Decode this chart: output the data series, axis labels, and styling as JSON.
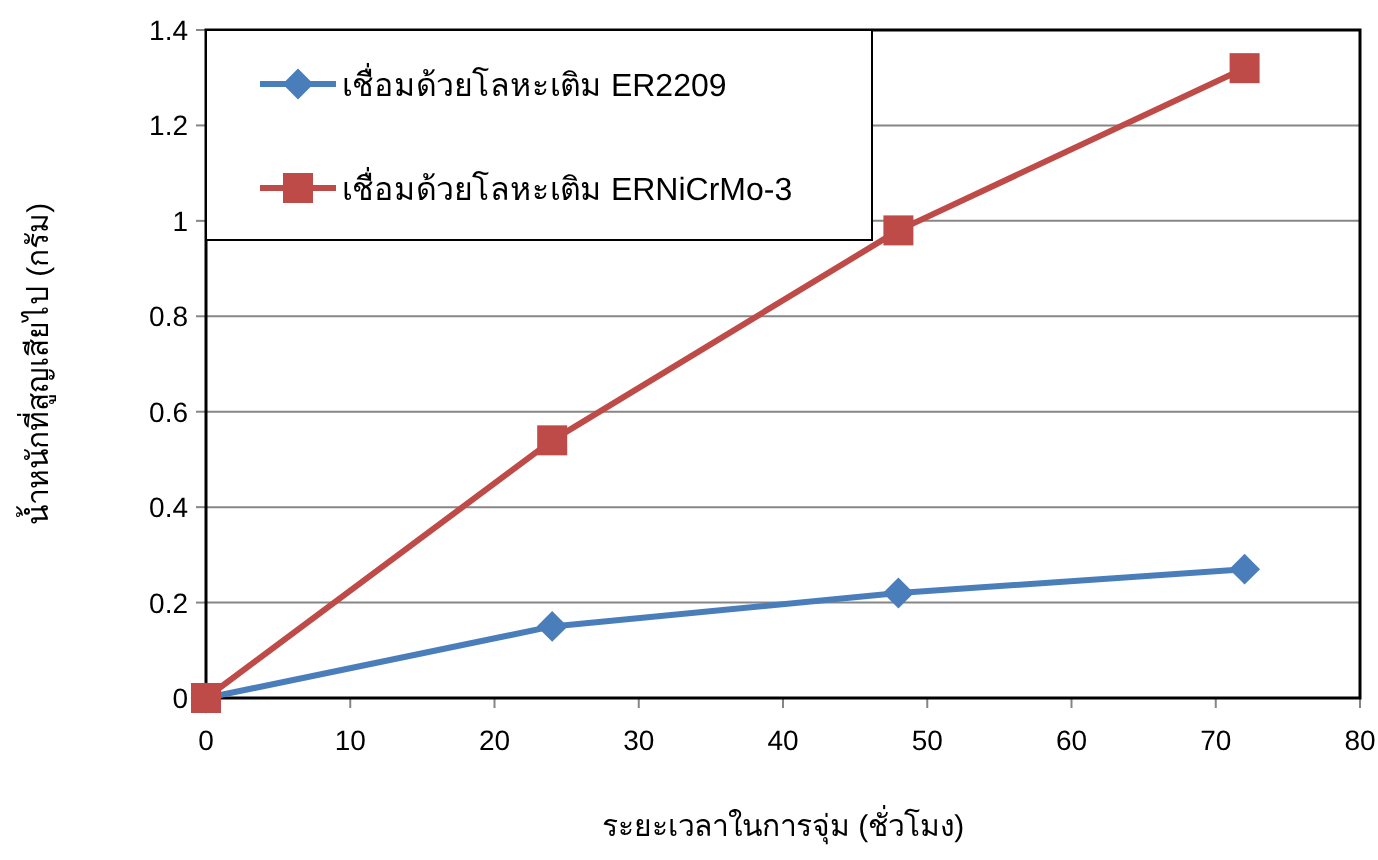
{
  "chart_data": {
    "type": "line",
    "xlabel": "ระยะเวลาในการจุ่ม (ชั่วโมง)",
    "ylabel": "น้ำหนักที่สูญเสียไป (กรัม)",
    "x": [
      0,
      24,
      48,
      72
    ],
    "series": [
      {
        "name": "เชื่อมด้วยโลหะเติม ER2209",
        "color": "#4a7ebb",
        "marker": "diamond",
        "values": [
          0,
          0.15,
          0.22,
          0.27
        ]
      },
      {
        "name": "เชื่อมด้วยโลหะเติม ERNiCrMo-3",
        "color": "#be4b48",
        "marker": "square",
        "values": [
          0,
          0.54,
          0.98,
          1.32
        ]
      }
    ],
    "xlim": [
      0,
      80
    ],
    "xticks": [
      0,
      10,
      20,
      30,
      40,
      50,
      60,
      70,
      80
    ],
    "ylim": [
      0,
      1.4
    ],
    "yticks": [
      0,
      0.2,
      0.4,
      0.6,
      0.8,
      1,
      1.2,
      1.4
    ],
    "grid": "y",
    "legend": "top left"
  }
}
